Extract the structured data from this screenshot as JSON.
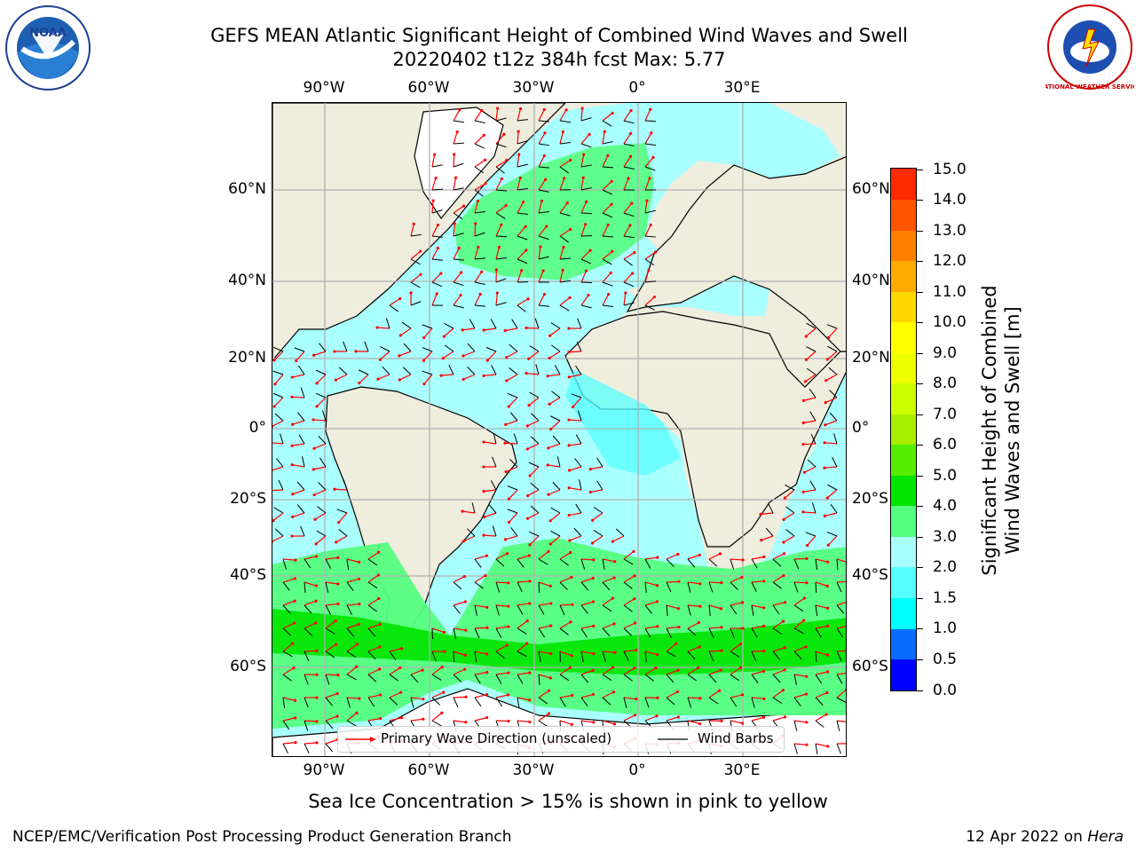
{
  "header": {
    "title_line1": "GEFS MEAN Atlantic Significant Height of Combined Wind Waves and Swell",
    "title_line2": "20220402 t12z 384h fcst   Max: 5.77"
  },
  "logos": {
    "left": "NOAA",
    "right_text": "NATIONAL WEATHER SERVICE"
  },
  "map": {
    "lon_labels_top": [
      "90°W",
      "60°W",
      "30°W",
      "0°",
      "30°E"
    ],
    "lon_labels_bottom": [
      "90°W",
      "60°W",
      "30°W",
      "0°",
      "30°E"
    ],
    "lat_labels_left": [
      "60°N",
      "40°N",
      "20°N",
      "0°",
      "20°S",
      "40°S",
      "60°S"
    ],
    "lat_labels_right": [
      "60°N",
      "40°N",
      "20°N",
      "0°",
      "20°S",
      "40°S",
      "60°S"
    ],
    "lon_values": [
      -90,
      -60,
      -30,
      0,
      30
    ],
    "lat_values": [
      60,
      40,
      20,
      0,
      -20,
      -40,
      -60
    ],
    "extent": {
      "lon_min": -105,
      "lon_max": 60,
      "lat_min": -80,
      "lat_max": 80
    },
    "land_color": "#efedde",
    "ice_color": "#ff55ff"
  },
  "legend": {
    "wave_direction_label": "Primary Wave Direction (unscaled)",
    "wind_barbs_label": "Wind Barbs",
    "wave_direction_color": "#ff0000",
    "wind_barbs_color": "#000000"
  },
  "colorbar": {
    "title_line1": "Significant Height of Combined",
    "title_line2": "Wind Waves and Swell [m]",
    "tick_labels": [
      "0.0",
      "0.5",
      "1.0",
      "1.5",
      "2.0",
      "3.0",
      "4.0",
      "5.0",
      "6.0",
      "7.0",
      "8.0",
      "9.0",
      "10.0",
      "11.0",
      "12.0",
      "13.0",
      "14.0",
      "15.0"
    ],
    "colors": [
      "#0000ff",
      "#0a6cff",
      "#00ffff",
      "#55ffff",
      "#aaffff",
      "#55ff80",
      "#00e400",
      "#55ee00",
      "#aaee00",
      "#ccff00",
      "#eeff00",
      "#ffff00",
      "#ffd700",
      "#ffaa00",
      "#ff8000",
      "#ff5500",
      "#ff2a00"
    ]
  },
  "footer": {
    "sea_ice_note": "Sea Ice Concentration > 15% is shown in pink to yellow",
    "branch": "NCEP/EMC/Verification Post Processing Product Generation Branch",
    "date_prefix": "12 Apr 2022 on ",
    "machine": "Hera"
  }
}
